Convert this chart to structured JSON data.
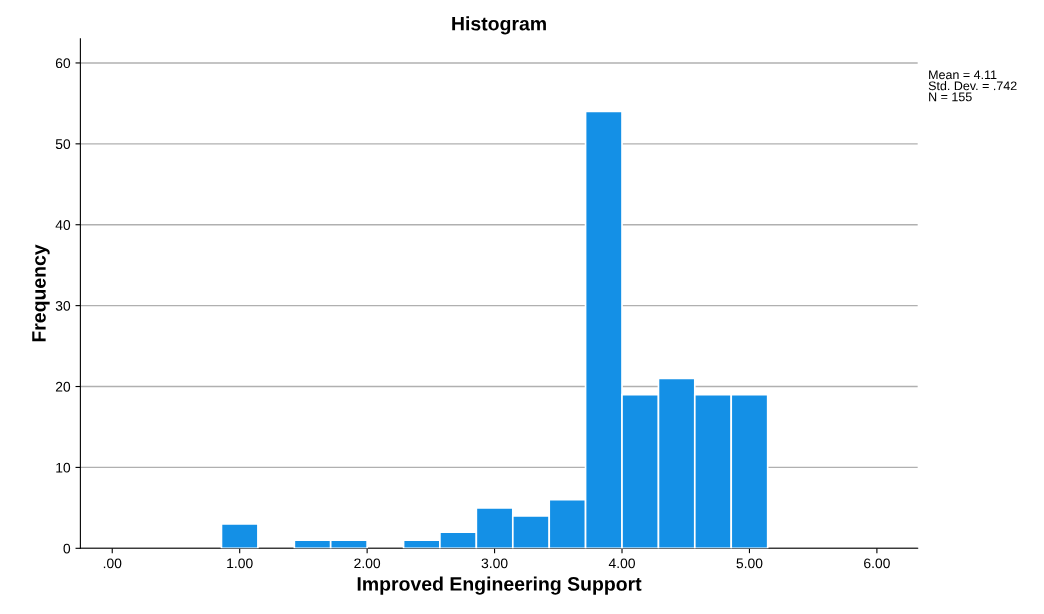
{
  "chart_data": {
    "type": "histogram",
    "title": "Histogram",
    "xlabel": "Improved Engineering Support",
    "ylabel": "Frequency",
    "bins": [
      0.857,
      1.143,
      1.429,
      1.714,
      2.0,
      2.286,
      2.571,
      2.857,
      3.143,
      3.429,
      3.714,
      4.0,
      4.286,
      4.571,
      4.857,
      5.143
    ],
    "values": [
      3,
      0,
      1,
      1,
      0,
      1,
      2,
      5,
      4,
      6,
      54,
      19,
      21,
      19,
      19
    ],
    "color": "#1490e6",
    "xlim": [
      -0.25,
      6.32
    ],
    "xticks": [
      {
        "value": 0,
        "label": ".00"
      },
      {
        "value": 1,
        "label": "1.00"
      },
      {
        "value": 2,
        "label": "2.00"
      },
      {
        "value": 3,
        "label": "3.00"
      },
      {
        "value": 4,
        "label": "4.00"
      },
      {
        "value": 5,
        "label": "5.00"
      },
      {
        "value": 6,
        "label": "6.00"
      }
    ],
    "ylim": [
      0,
      63
    ],
    "yticks": [
      0,
      10,
      20,
      30,
      40,
      50,
      60
    ],
    "grid": "y",
    "annotations": [
      "Mean = 4.11",
      "Std. Dev. = .742",
      "N = 155"
    ]
  }
}
